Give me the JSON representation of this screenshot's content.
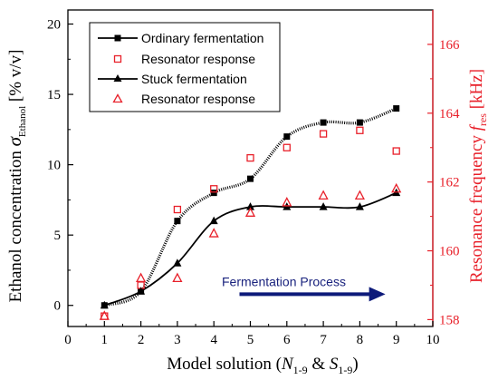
{
  "chart_data": {
    "type": "line",
    "x": [
      1,
      2,
      3,
      4,
      5,
      6,
      7,
      8,
      9
    ],
    "xlim": [
      0,
      10
    ],
    "xticks": [
      0,
      1,
      2,
      3,
      4,
      5,
      6,
      7,
      8,
      9,
      10
    ],
    "ylim": [
      -1.5,
      21
    ],
    "yticks": [
      0,
      5,
      10,
      15,
      20
    ],
    "y2lim": [
      157.8,
      167
    ],
    "y2ticks": [
      158,
      160,
      162,
      164,
      166
    ],
    "xlabel": {
      "prefix": "Model solution (",
      "n": "N",
      "n_sub": "1-9",
      "amp": " & ",
      "s": "S",
      "s_sub": "1-9",
      "suffix": ")"
    },
    "ylabel": {
      "text": "Ethanol concentration ",
      "symbol": "σ",
      "sub": "Ethanol",
      "unit": " [% v/v]"
    },
    "y2label": {
      "text": "Resonance frequency ",
      "symbol": "f",
      "sub": "res",
      "unit": " [kHz]"
    },
    "series": [
      {
        "name": "Ordinary fermentation",
        "axis": "left",
        "marker": "square-filled",
        "color": "#000000",
        "values": [
          0,
          1,
          6,
          8,
          9,
          12,
          13,
          13,
          14
        ]
      },
      {
        "name": "Resonator response",
        "axis": "right",
        "marker": "square-open",
        "color": "#e8202a",
        "values": [
          158.1,
          159.0,
          161.2,
          161.8,
          162.7,
          163.0,
          163.4,
          163.5,
          162.9
        ]
      },
      {
        "name": "Stuck fermentation",
        "axis": "left",
        "marker": "triangle-filled",
        "color": "#000000",
        "values": [
          0,
          1,
          3,
          6,
          7,
          7,
          7,
          7,
          8
        ]
      },
      {
        "name": "Resonator response",
        "axis": "right",
        "marker": "triangle-open",
        "color": "#e8202a",
        "values": [
          158.1,
          159.2,
          159.2,
          160.5,
          161.1,
          161.4,
          161.6,
          161.6,
          161.8
        ]
      }
    ],
    "annotation": {
      "text": "Fermentation Process",
      "color": "#1a237e",
      "x_start": 4.95,
      "x_end": 8.7,
      "y": 0.8
    },
    "legend_position": "top-left",
    "grid": false,
    "colors": {
      "axis_left": "#000000",
      "axis_right": "#e8202a",
      "arrow": "#0d1a7a"
    }
  }
}
